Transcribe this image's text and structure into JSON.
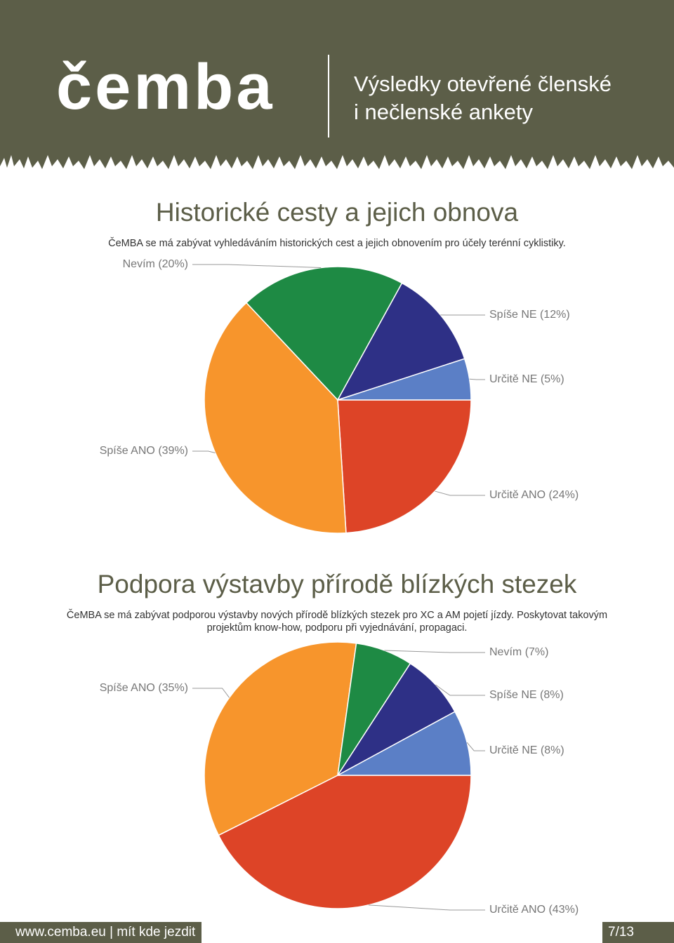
{
  "header": {
    "logo": "čemba",
    "title_lines": [
      "Výsledky otevřené členské",
      "i nečlenské ankety"
    ]
  },
  "chart_data": [
    {
      "type": "pie",
      "title": "Historické cesty a jejich obnova",
      "subtitle": "ČeMBA se má zabývat vyhledáváním historických cest a jejich obnovením pro účely terénní cyklistiky.",
      "categories": [
        "Určitě ANO",
        "Spíše ANO",
        "Nevím",
        "Spíše NE",
        "Určitě NE"
      ],
      "values": [
        24,
        39,
        20,
        12,
        5
      ],
      "value_labels": [
        "(24%)",
        "(39%)",
        "(20%)",
        "(12%)",
        "(5%)"
      ],
      "colors": [
        "#dd4427",
        "#f7952c",
        "#1e8a44",
        "#2e3086",
        "#5b7fc6"
      ]
    },
    {
      "type": "pie",
      "title": "Podpora výstavby přírodě blízkých stezek",
      "subtitle": "ČeMBA se má zabývat podporou výstavby nových přírodě blízkých stezek pro XC a AM pojetí jízdy. Poskytovat takovým projektům know-how, podporu při vyjednávání, propagaci.",
      "categories": [
        "Určitě ANO",
        "Spíše ANO",
        "Nevím",
        "Spíše NE",
        "Určitě NE"
      ],
      "values": [
        43,
        35,
        7,
        8,
        8
      ],
      "value_labels": [
        "(43%)",
        "(35%)",
        "(7%)",
        "(8%)",
        "(8%)"
      ],
      "colors": [
        "#dd4427",
        "#f7952c",
        "#1e8a44",
        "#2e3086",
        "#5b7fc6"
      ]
    }
  ],
  "footer": {
    "site": "www.cemba.eu | mít kde jezdit",
    "page": "7/13"
  }
}
